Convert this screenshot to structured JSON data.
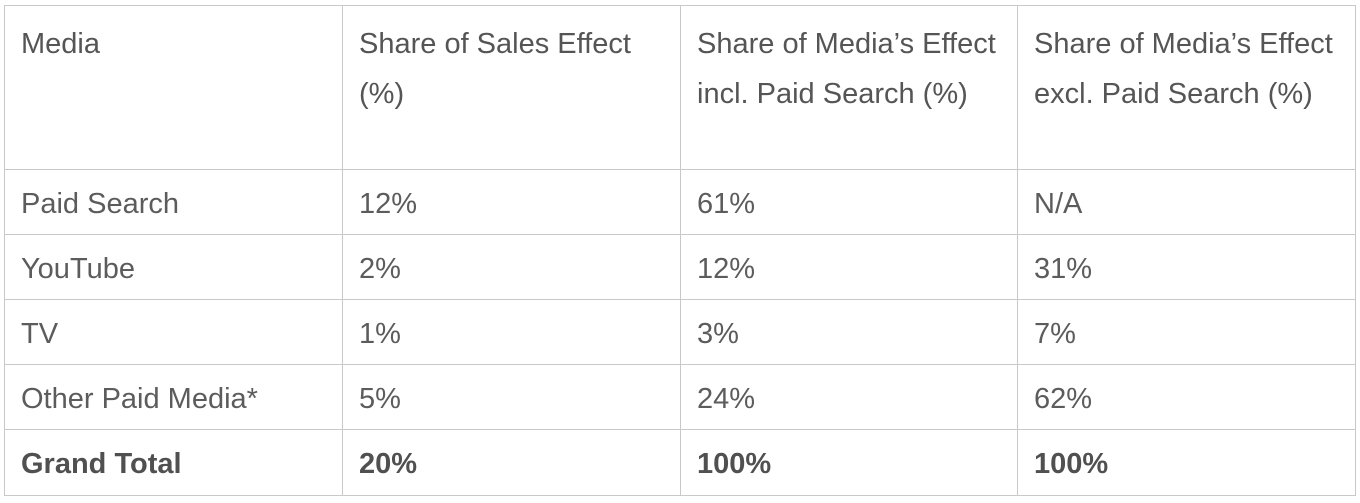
{
  "table": {
    "headers": [
      "Media",
      "Share of Sales Effect (%)",
      "Share of Media’s Effect incl. Paid Search (%)",
      "Share of Media’s Effect excl. Paid Search (%)"
    ],
    "rows": [
      [
        "Paid Search",
        "12%",
        "61%",
        "N/A"
      ],
      [
        "YouTube",
        "2%",
        "12%",
        "31%"
      ],
      [
        "TV",
        "1%",
        "3%",
        "7%"
      ],
      [
        "Other Paid Media*",
        "5%",
        "24%",
        "62%"
      ]
    ],
    "total": [
      "Grand Total",
      "20%",
      "100%",
      "100%"
    ]
  }
}
